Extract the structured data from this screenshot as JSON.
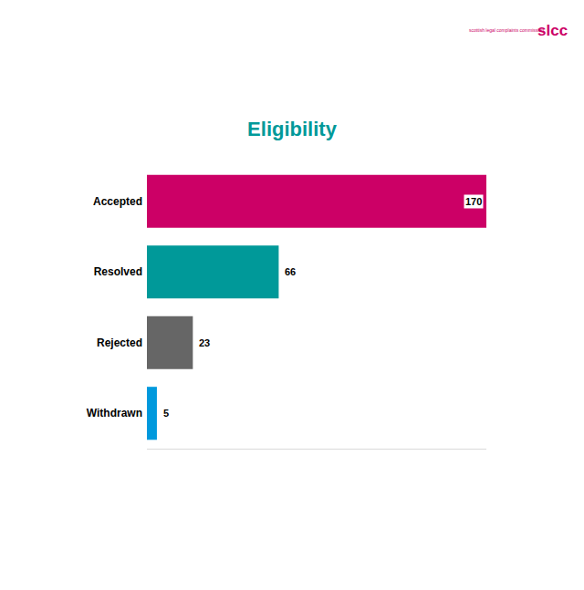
{
  "chart_data": {
    "type": "bar",
    "title": "Eligibility",
    "orientation": "horizontal",
    "categories": [
      "Accepted",
      "Resolved",
      "Rejected",
      "Withdrawn"
    ],
    "values": [
      170,
      66,
      23,
      5
    ],
    "colors": [
      "#cc0066",
      "#009999",
      "#666666",
      "#0099dd"
    ],
    "xlim": [
      0,
      170
    ],
    "xticks": [],
    "grid": false,
    "data_labels": true,
    "tick_labels": "y",
    "annotations": [
      "scottish legal complaints commission",
      "slcc"
    ]
  }
}
